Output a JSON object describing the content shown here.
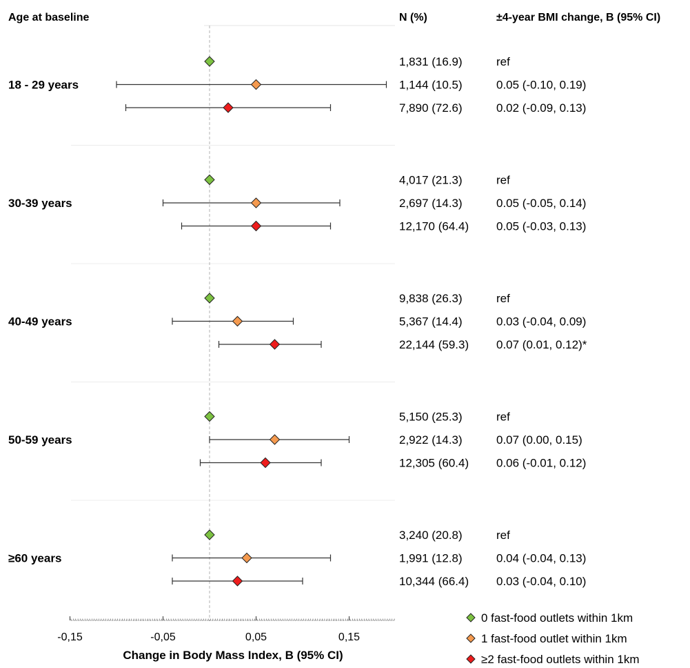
{
  "chart_data": {
    "type": "forest",
    "group_header": "Age at baseline",
    "n_header": "N (%)",
    "effect_header": "±4-year BMI change, B (95% CI)",
    "xlabel": "Change in Body Mass Index, B (95% CI)",
    "xlim": [
      -0.22,
      0.2
    ],
    "reference_line": 0,
    "x_ticks": [
      -0.15,
      -0.05,
      0.05,
      0.15
    ],
    "x_tick_labels": [
      "-0,15",
      "-0,05",
      "0,05",
      "0,15"
    ],
    "series": [
      {
        "name": "0 fast-food outlets within 1km",
        "color": "#7dc242"
      },
      {
        "name": "1 fast-food outlet within 1km",
        "color": "#f59a4f"
      },
      {
        "name": "≥2 fast-food outlets within 1km",
        "color": "#ee1c1c"
      }
    ],
    "groups": [
      {
        "label": "18 - 29 years",
        "rows": [
          {
            "n": "1,831 (16.9)",
            "effect": "ref",
            "est": 0,
            "lo": null,
            "hi": null
          },
          {
            "n": "1,144  (10.5)",
            "effect": "0.05 (-0.10, 0.19)",
            "est": 0.05,
            "lo": -0.1,
            "hi": 0.19
          },
          {
            "n": "7,890 (72.6)",
            "effect": "0.02 (-0.09, 0.13)",
            "est": 0.02,
            "lo": -0.09,
            "hi": 0.13
          }
        ]
      },
      {
        "label": "30-39 years",
        "rows": [
          {
            "n": "4,017 (21.3)",
            "effect": "ref",
            "est": 0,
            "lo": null,
            "hi": null
          },
          {
            "n": "2,697 (14.3)",
            "effect": "0.05 (-0.05, 0.14)",
            "est": 0.05,
            "lo": -0.05,
            "hi": 0.14
          },
          {
            "n": "12,170 (64.4)",
            "effect": "0.05 (-0.03, 0.13)",
            "est": 0.05,
            "lo": -0.03,
            "hi": 0.13
          }
        ]
      },
      {
        "label": "40-49 years",
        "rows": [
          {
            "n": "9,838 (26.3)",
            "effect": "ref",
            "est": 0,
            "lo": null,
            "hi": null
          },
          {
            "n": "5,367 (14.4)",
            "effect": "0.03 (-0.04, 0.09)",
            "est": 0.03,
            "lo": -0.04,
            "hi": 0.09
          },
          {
            "n": "22,144 (59.3)",
            "effect": "0.07 (0.01, 0.12)*",
            "est": 0.07,
            "lo": 0.01,
            "hi": 0.12
          }
        ]
      },
      {
        "label": "50-59 years",
        "rows": [
          {
            "n": "5,150 (25.3)",
            "effect": "ref",
            "est": 0,
            "lo": null,
            "hi": null
          },
          {
            "n": "2,922 (14.3)",
            "effect": "0.07 (0.00, 0.15)",
            "est": 0.07,
            "lo": 0.0,
            "hi": 0.15
          },
          {
            "n": "12,305 (60.4)",
            "effect": "0.06 (-0.01, 0.12)",
            "est": 0.06,
            "lo": -0.01,
            "hi": 0.12
          }
        ]
      },
      {
        "label": "≥60 years",
        "rows": [
          {
            "n": "3,240 (20.8)",
            "effect": "ref",
            "est": 0,
            "lo": null,
            "hi": null
          },
          {
            "n": "1,991 (12.8)",
            "effect": "0.04 (-0.04, 0.13)",
            "est": 0.04,
            "lo": -0.04,
            "hi": 0.13
          },
          {
            "n": "10,344 (66.4)",
            "effect": "0.03 (-0.04, 0.10)",
            "est": 0.03,
            "lo": -0.04,
            "hi": 0.1
          }
        ]
      }
    ]
  }
}
